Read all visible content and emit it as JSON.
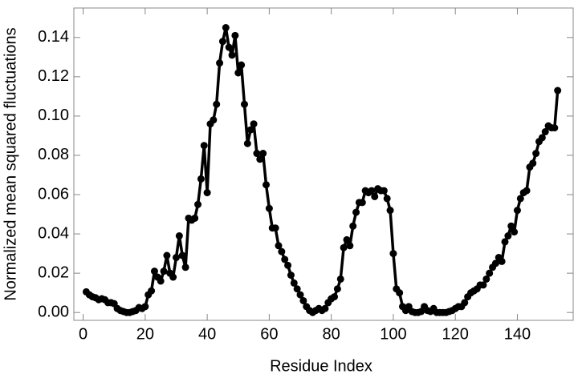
{
  "chart_data": {
    "type": "line",
    "xlabel": "Residue Index",
    "ylabel": "Normalized mean squared fluctuations",
    "xlim": [
      -3,
      158
    ],
    "ylim": [
      -0.004,
      0.155
    ],
    "xticks": [
      0,
      20,
      40,
      60,
      80,
      100,
      120,
      140
    ],
    "yticks": [
      {
        "value": 0,
        "label": "0.00"
      },
      {
        "value": 0.02,
        "label": "0.02"
      },
      {
        "value": 0.04,
        "label": "0.04"
      },
      {
        "value": 0.06,
        "label": "0.06"
      },
      {
        "value": 0.08,
        "label": "0.08"
      },
      {
        "value": 0.1,
        "label": "0.10"
      },
      {
        "value": 0.12,
        "label": "0.12"
      },
      {
        "value": 0.14,
        "label": "0.14"
      }
    ],
    "x": [
      1,
      2,
      3,
      4,
      5,
      6,
      7,
      8,
      9,
      10,
      11,
      12,
      13,
      14,
      15,
      16,
      17,
      18,
      19,
      20,
      21,
      22,
      23,
      24,
      25,
      26,
      27,
      28,
      29,
      30,
      31,
      32,
      33,
      34,
      35,
      36,
      37,
      38,
      39,
      40,
      41,
      42,
      43,
      44,
      45,
      46,
      47,
      48,
      49,
      50,
      51,
      52,
      53,
      54,
      55,
      56,
      57,
      58,
      59,
      60,
      61,
      62,
      63,
      64,
      65,
      66,
      67,
      68,
      69,
      70,
      71,
      72,
      73,
      74,
      75,
      76,
      77,
      78,
      79,
      80,
      81,
      82,
      83,
      84,
      85,
      86,
      87,
      88,
      89,
      90,
      91,
      92,
      93,
      94,
      95,
      96,
      97,
      98,
      99,
      100,
      101,
      102,
      103,
      104,
      105,
      106,
      107,
      108,
      109,
      110,
      111,
      112,
      113,
      114,
      115,
      116,
      117,
      118,
      119,
      120,
      121,
      122,
      123,
      124,
      125,
      126,
      127,
      128,
      129,
      130,
      131,
      132,
      133,
      134,
      135,
      136,
      137,
      138,
      139,
      140,
      141,
      142,
      143,
      144,
      145,
      146,
      147,
      148,
      149,
      150,
      151,
      152,
      153
    ],
    "series": [
      {
        "color": "#000000",
        "values": [
          0.0105,
          0.009,
          0.008,
          0.0075,
          0.0065,
          0.007,
          0.0065,
          0.005,
          0.005,
          0.0045,
          0.002,
          0.001,
          0.0005,
          0.0,
          0.0,
          0.0005,
          0.001,
          0.0025,
          0.002,
          0.003,
          0.009,
          0.011,
          0.021,
          0.018,
          0.016,
          0.021,
          0.029,
          0.02,
          0.018,
          0.028,
          0.039,
          0.029,
          0.023,
          0.048,
          0.047,
          0.048,
          0.055,
          0.068,
          0.085,
          0.061,
          0.096,
          0.098,
          0.106,
          0.127,
          0.138,
          0.145,
          0.135,
          0.131,
          0.141,
          0.122,
          0.126,
          0.106,
          0.086,
          0.093,
          0.096,
          0.081,
          0.078,
          0.081,
          0.065,
          0.053,
          0.043,
          0.043,
          0.034,
          0.031,
          0.027,
          0.024,
          0.019,
          0.015,
          0.012,
          0.009,
          0.006,
          0.003,
          0.001,
          0.0,
          0.001,
          0.002,
          0.001,
          0.002,
          0.005,
          0.007,
          0.008,
          0.012,
          0.017,
          0.033,
          0.037,
          0.034,
          0.044,
          0.051,
          0.056,
          0.056,
          0.062,
          0.061,
          0.062,
          0.059,
          0.063,
          0.062,
          0.062,
          0.058,
          0.052,
          0.03,
          0.012,
          0.01,
          0.003,
          0.001,
          0.003,
          0.0005,
          0.0,
          0.0,
          0.0005,
          0.003,
          0.001,
          0.0005,
          0.002,
          0.0,
          0.0,
          0.0,
          0.0,
          0.0005,
          0.001,
          0.002,
          0.003,
          0.003,
          0.005,
          0.008,
          0.01,
          0.011,
          0.012,
          0.014,
          0.014,
          0.017,
          0.02,
          0.023,
          0.025,
          0.028,
          0.026,
          0.036,
          0.039,
          0.044,
          0.041,
          0.052,
          0.058,
          0.061,
          0.062,
          0.074,
          0.076,
          0.081,
          0.087,
          0.089,
          0.092,
          0.095,
          0.094,
          0.094,
          0.113
        ]
      }
    ]
  }
}
